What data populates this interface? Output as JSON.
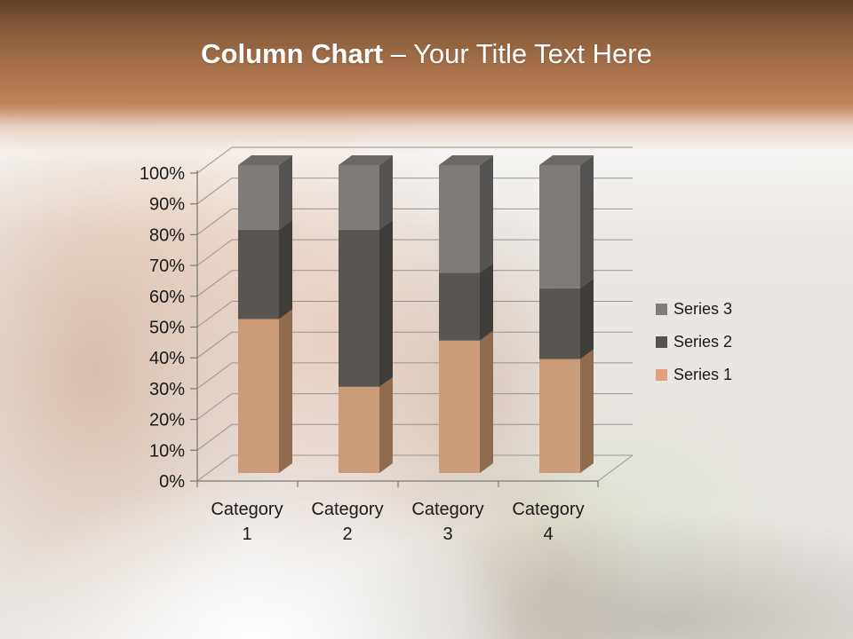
{
  "slide": {
    "title": {
      "bold_text": "Column Chart",
      "light_text": "– Your Title Text Here",
      "text_color": "#FFFFFF"
    },
    "header_accent_color": "#B5764E"
  },
  "chart_data": {
    "type": "bar",
    "subtype": "3d-100%-stacked-column",
    "title": "",
    "xlabel": "",
    "ylabel": "",
    "categories": [
      "Category 1",
      "Category 2",
      "Category 3",
      "Category 4"
    ],
    "series": [
      {
        "name": "Series 1",
        "values": [
          50,
          28,
          43,
          37
        ],
        "color_front": "#CC9B78",
        "color_side": "#8F6B4F"
      },
      {
        "name": "Series 2",
        "values": [
          29,
          51,
          22,
          23
        ],
        "color_front": "#595651",
        "color_side": "#3F3D3A"
      },
      {
        "name": "Series 3",
        "values": [
          21,
          21,
          35,
          40
        ],
        "color_front": "#7E7B78",
        "color_side": "#555351",
        "color_top": "#6B6966"
      }
    ],
    "y_axis": {
      "min": 0,
      "max": 100,
      "step": 10,
      "tick_labels": [
        "0%",
        "10%",
        "20%",
        "30%",
        "40%",
        "50%",
        "60%",
        "70%",
        "80%",
        "90%",
        "100%"
      ]
    },
    "grid": "on",
    "legend": {
      "position": "right",
      "entries": [
        {
          "label": "Series 3",
          "color": "#7F7D7A"
        },
        {
          "label": "Series 2",
          "color": "#555250"
        },
        {
          "label": "Series 1",
          "color": "#E0A07D"
        }
      ]
    }
  }
}
